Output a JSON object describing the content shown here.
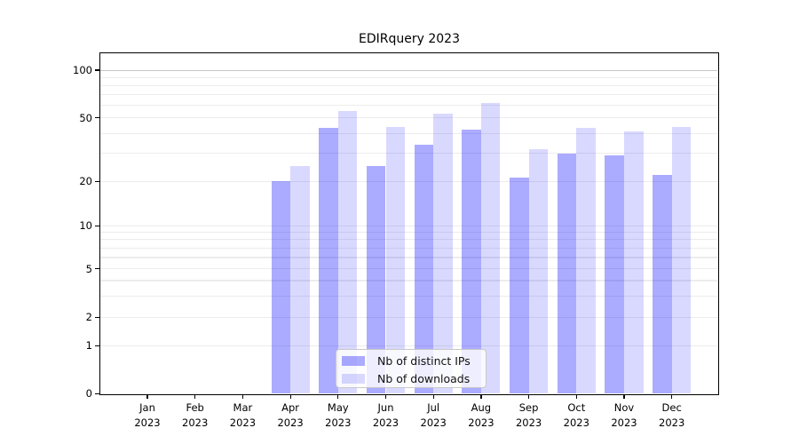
{
  "chart_data": {
    "type": "bar",
    "title": "EDIRquery 2023",
    "categories": [
      "Jan",
      "Feb",
      "Mar",
      "Apr",
      "May",
      "Jun",
      "Jul",
      "Aug",
      "Sep",
      "Oct",
      "Nov",
      "Dec"
    ],
    "year_label": "2023",
    "series": [
      {
        "name": "Nb of distinct IPs",
        "color": "rgba(0,0,255,0.33)",
        "values": [
          0,
          0,
          0,
          20,
          43,
          25,
          34,
          42,
          21,
          30,
          29,
          22
        ]
      },
      {
        "name": "Nb of downloads",
        "color": "rgba(0,0,255,0.15)",
        "values": [
          0,
          0,
          0,
          25,
          55,
          44,
          53,
          62,
          32,
          43,
          41,
          44
        ]
      }
    ],
    "yscale": "symlog",
    "y_ticks": [
      0,
      1,
      2,
      5,
      10,
      20,
      50,
      100
    ],
    "y_tick_labels": [
      "0",
      "1",
      "2",
      "5",
      "10",
      "20",
      "50",
      "100"
    ],
    "y_minor_gridlines": [
      3,
      4,
      6,
      7,
      8,
      9,
      30,
      40,
      60,
      70,
      80,
      90
    ],
    "ylim": [
      0,
      120
    ],
    "grid": true,
    "legend_position": "lower center"
  },
  "colors": {
    "background": "#ffffff",
    "axis": "#000000",
    "grid_minor": "#ececec",
    "grid_major": "#ececec",
    "grid_top": "#c6c6c6",
    "bar_dark": "rgba(0,0,255,0.33)",
    "bar_light": "rgba(0,0,255,0.15)",
    "legend_border": "#c9c9c9"
  }
}
